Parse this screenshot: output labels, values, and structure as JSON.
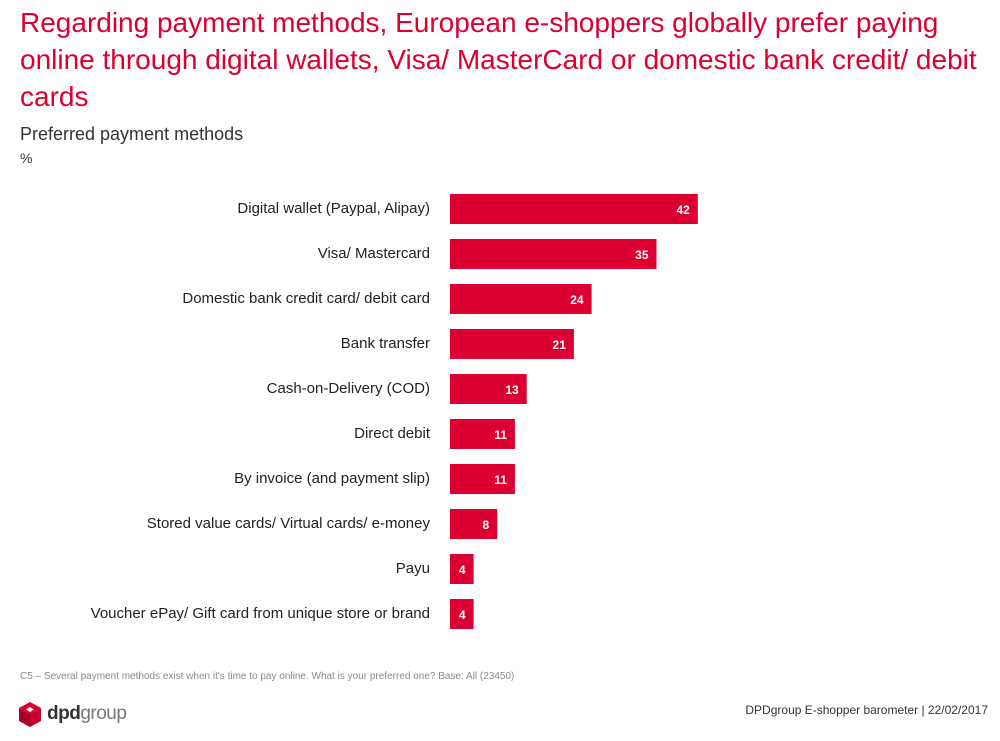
{
  "title": "Regarding payment methods, European e-shoppers globally prefer paying online through digital wallets, Visa/ MasterCard or domestic bank credit/ debit cards",
  "subtitle": "Preferred payment methods",
  "unit": "%",
  "footnote": "C5 – Several payment methods exist when it's time to pay online. What is your preferred one? Base: All (23450)",
  "footer": {
    "logo_dpd": "dpd",
    "logo_group": "group",
    "source": "DPDgroup E-shopper barometer |  22/02/2017"
  },
  "colors": {
    "accent": "#dc0032",
    "bar": "#dc0032"
  },
  "chart_data": {
    "type": "bar",
    "orientation": "horizontal",
    "categories": [
      "Digital wallet (Paypal, Alipay)",
      "Visa/ Mastercard",
      "Domestic bank credit card/ debit card",
      "Bank transfer",
      "Cash-on-Delivery (COD)",
      "Direct debit",
      "By invoice (and payment slip)",
      "Stored value cards/ Virtual cards/ e-money",
      "Payu",
      "Voucher ePay/ Gift card from unique store or brand"
    ],
    "values": [
      42,
      35,
      24,
      21,
      13,
      11,
      11,
      8,
      4,
      4
    ],
    "title": "Preferred payment methods",
    "ylabel": "%",
    "xlim": [
      0,
      100
    ],
    "grid": false,
    "legend": "none",
    "data_labels": true
  }
}
